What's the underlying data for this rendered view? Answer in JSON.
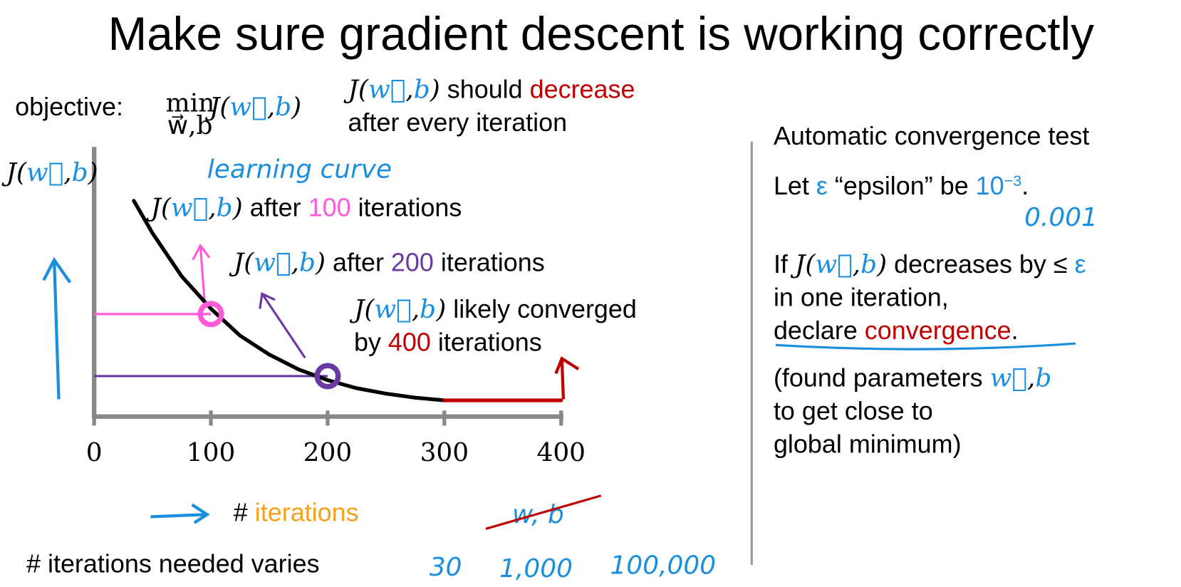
{
  "title": "Make sure gradient descent is working correctly",
  "objective": {
    "label": "objective:",
    "min": "min",
    "min_sub": "w⃗,b",
    "expr": [
      [
        "J(",
        "#000"
      ],
      [
        "w⃗",
        "#1a8fe0"
      ],
      [
        ",",
        "#000"
      ],
      [
        "b",
        "#1a8fe0"
      ],
      [
        ")",
        "#000"
      ]
    ]
  },
  "note": [
    [
      [
        "J(",
        "#000"
      ],
      [
        "w⃗",
        "#1a8fe0"
      ],
      [
        ",",
        "#000"
      ],
      [
        "b",
        "#1a8fe0"
      ],
      [
        ")",
        "#000"
      ],
      [
        " should ",
        "#000"
      ],
      [
        "decrease",
        "#c00000"
      ]
    ],
    [
      [
        "after every iteration",
        "#000"
      ]
    ]
  ],
  "chart_data": {
    "type": "line",
    "ylabel": [
      [
        "J(",
        "#000"
      ],
      [
        "w⃗",
        "#1a8fe0"
      ],
      [
        ",",
        "#000"
      ],
      [
        "b",
        "#1a8fe0"
      ],
      [
        ")",
        "#000"
      ]
    ],
    "xlabel": [
      [
        "# ",
        "#000"
      ],
      [
        "iterations",
        "#f5a21b"
      ]
    ],
    "curve_label": "learning curve",
    "annotations": [
      [
        [
          "J(",
          "#000"
        ],
        [
          "w⃗",
          "#1a8fe0"
        ],
        [
          ",",
          "#000"
        ],
        [
          "b",
          "#1a8fe0"
        ],
        [
          ")",
          "#000"
        ],
        [
          " after ",
          "#000"
        ],
        [
          "100",
          "#ff5bd8"
        ],
        [
          " iterations",
          "#000"
        ]
      ],
      [
        [
          "J(",
          "#000"
        ],
        [
          "w⃗",
          "#1a8fe0"
        ],
        [
          ",",
          "#000"
        ],
        [
          "b",
          "#1a8fe0"
        ],
        [
          ")",
          "#000"
        ],
        [
          " after ",
          "#000"
        ],
        [
          "200",
          "#6a3aa0"
        ],
        [
          " iterations",
          "#000"
        ]
      ],
      [
        [
          "J(",
          "#000"
        ],
        [
          "w⃗",
          "#1a8fe0"
        ],
        [
          ",",
          "#000"
        ],
        [
          "b",
          "#1a8fe0"
        ],
        [
          ")",
          "#000"
        ],
        [
          " likely converged",
          "#000"
        ]
      ],
      [
        [
          "by ",
          "#000"
        ],
        [
          "400",
          "#c00000"
        ],
        [
          " iterations",
          "#000"
        ]
      ]
    ],
    "xlim": [
      0,
      400
    ],
    "ylim": [
      0,
      10
    ],
    "xticks": [
      0,
      100,
      200,
      300,
      400
    ],
    "series": [
      {
        "color": "#000000",
        "x": [
          34,
          50,
          75,
          100,
          125,
          150,
          175,
          200,
          225,
          250,
          275,
          300
        ],
        "values": [
          8.0,
          6.8,
          5.2,
          4.0,
          3.0,
          2.3,
          1.75,
          1.35,
          1.05,
          0.85,
          0.7,
          0.6
        ]
      },
      {
        "color": "#c00000",
        "x": [
          300,
          400
        ],
        "values": [
          0.6,
          0.6
        ]
      }
    ],
    "markers": [
      {
        "x": 100,
        "y": 3.8,
        "color": "#ff5bd8"
      },
      {
        "x": 200,
        "y": 1.5,
        "color": "#6a3aa0"
      }
    ]
  },
  "crossed_out": "w, b",
  "bottom": {
    "label": "# iterations needed varies",
    "examples": [
      "30",
      "1,000",
      "100,000"
    ]
  },
  "right": {
    "lines": [
      [
        [
          "Automatic convergence test",
          "#000"
        ]
      ],
      [
        [
          "Let ",
          "#000"
        ],
        [
          "ε",
          "#1a8fe0"
        ],
        [
          " “epsilon” be ",
          "#000"
        ],
        [
          "10",
          "#1a8fe0"
        ],
        [
          "−3",
          "#1a8fe0",
          "sup"
        ],
        [
          ".",
          "#000"
        ]
      ],
      [
        [
          "If ",
          "#000"
        ],
        [
          "J(",
          "#000"
        ],
        [
          "w⃗",
          "#1a8fe0"
        ],
        [
          ",",
          "#000"
        ],
        [
          "b",
          "#1a8fe0"
        ],
        [
          ")",
          "#000"
        ],
        [
          " decreases by ≤ ",
          "#000"
        ],
        [
          "ε",
          "#1a8fe0"
        ]
      ],
      [
        [
          "in one iteration,",
          "#000"
        ]
      ],
      [
        [
          "declare ",
          "#000"
        ],
        [
          "convergence",
          "#c00000"
        ],
        [
          ".",
          "#000"
        ]
      ],
      [
        [
          "(found parameters ",
          "#000"
        ],
        [
          "w⃗",
          "#1a8fe0"
        ],
        [
          ",",
          "#000"
        ],
        [
          "b",
          "#1a8fe0"
        ]
      ],
      [
        [
          "to get close to",
          "#000"
        ]
      ],
      [
        [
          "global minimum)",
          "#000"
        ]
      ]
    ],
    "handwritten": "0.001"
  }
}
